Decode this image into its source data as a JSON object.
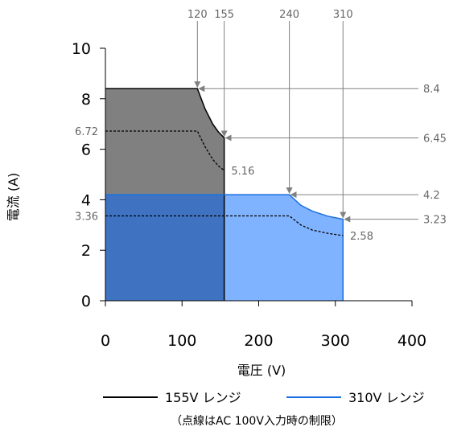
{
  "chart_data": {
    "type": "area",
    "xlabel": "電圧 (V)",
    "ylabel": "電流 (A)",
    "xlim": [
      0,
      400
    ],
    "ylim": [
      0,
      10
    ],
    "xticks": [
      "0",
      "100",
      "200",
      "300",
      "400"
    ],
    "yticks": [
      "0",
      "2",
      "4",
      "6",
      "8",
      "10"
    ],
    "grid": false,
    "legend_position": "bottom",
    "series": [
      {
        "name": "155V レンジ",
        "color": "#000000",
        "fill": "#808080",
        "limit": {
          "x": [
            0,
            120,
            130,
            140,
            147,
            155,
            155
          ],
          "y": [
            8.4,
            8.4,
            7.6,
            7.0,
            6.7,
            6.45,
            0
          ]
        },
        "ac100_limit": {
          "x": [
            0,
            120,
            130,
            140,
            147,
            155
          ],
          "y": [
            6.72,
            6.72,
            6.1,
            5.6,
            5.35,
            5.16
          ]
        }
      },
      {
        "name": "310V レンジ",
        "color": "#1a6fdf",
        "fill": "#80b3ff",
        "limit": {
          "x": [
            0,
            240,
            255,
            270,
            290,
            310,
            310
          ],
          "y": [
            4.2,
            4.2,
            3.78,
            3.55,
            3.35,
            3.23,
            0
          ]
        },
        "ac100_limit": {
          "x": [
            0,
            240,
            255,
            270,
            290,
            310
          ],
          "y": [
            3.36,
            3.36,
            3.0,
            2.8,
            2.67,
            2.58
          ]
        }
      }
    ],
    "annotations": {
      "top": [
        {
          "label": "120",
          "x": 120,
          "y": 8.4
        },
        {
          "label": "155",
          "x": 155,
          "y": 6.45
        },
        {
          "label": "240",
          "x": 240,
          "y": 4.2
        },
        {
          "label": "310",
          "x": 310,
          "y": 3.23
        }
      ],
      "right": [
        {
          "label": "8.4",
          "x": 120,
          "y": 8.4
        },
        {
          "label": "6.45",
          "x": 155,
          "y": 6.45
        },
        {
          "label": "4.2",
          "x": 240,
          "y": 4.2
        },
        {
          "label": "3.23",
          "x": 310,
          "y": 3.23
        }
      ],
      "inside": [
        {
          "label": "6.72",
          "x": -5,
          "y": 6.72,
          "anchor": "end"
        },
        {
          "label": "5.16",
          "x": 160,
          "y": 5.16,
          "anchor": "start"
        },
        {
          "label": "3.36",
          "x": -5,
          "y": 3.36,
          "anchor": "end"
        },
        {
          "label": "2.58",
          "x": 315,
          "y": 2.58,
          "anchor": "start"
        }
      ]
    },
    "note": "（点線はAC 100V入力時の制限）"
  }
}
